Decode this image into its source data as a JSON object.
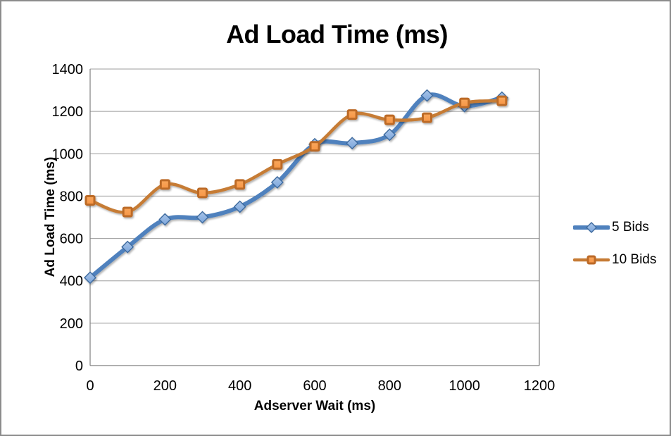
{
  "chart_data": {
    "type": "line",
    "title": "Ad Load Time (ms)",
    "xlabel": "Adserver Wait (ms)",
    "ylabel": "Ad Load Time (ms)",
    "x": [
      0,
      100,
      200,
      300,
      400,
      500,
      600,
      700,
      800,
      900,
      1000,
      1100
    ],
    "series": [
      {
        "name": "5 Bids",
        "marker": "diamond",
        "line_color": "#4F81BD",
        "marker_fill": "#7CA6DC",
        "marker_fill_light": "#A8C4E8",
        "marker_stroke": "#3E6A9E",
        "line_width": 6,
        "values": [
          415,
          560,
          690,
          700,
          750,
          865,
          1045,
          1050,
          1090,
          1275,
          1225,
          1265
        ]
      },
      {
        "name": "10 Bids",
        "marker": "square",
        "line_color": "#C67B35",
        "marker_fill": "#F79646",
        "marker_fill_light": "#F9A75C",
        "marker_stroke": "#BC6A28",
        "line_width": 4.5,
        "values": [
          780,
          725,
          855,
          815,
          855,
          950,
          1035,
          1185,
          1160,
          1170,
          1240,
          1250
        ]
      }
    ],
    "xlim": [
      0,
      1200
    ],
    "ylim": [
      0,
      1400
    ],
    "x_ticks": [
      0,
      200,
      400,
      600,
      800,
      1000,
      1200
    ],
    "y_ticks": [
      0,
      200,
      400,
      600,
      800,
      1000,
      1200,
      1400
    ],
    "grid": true,
    "smoothed_lines": true,
    "legend_position": "right"
  },
  "colors": {
    "background": "#FFFFFF",
    "frame_border": "#8C8C8C",
    "gridline": "#9C9C9C",
    "axis_line": "#808080",
    "text": "#000000"
  }
}
